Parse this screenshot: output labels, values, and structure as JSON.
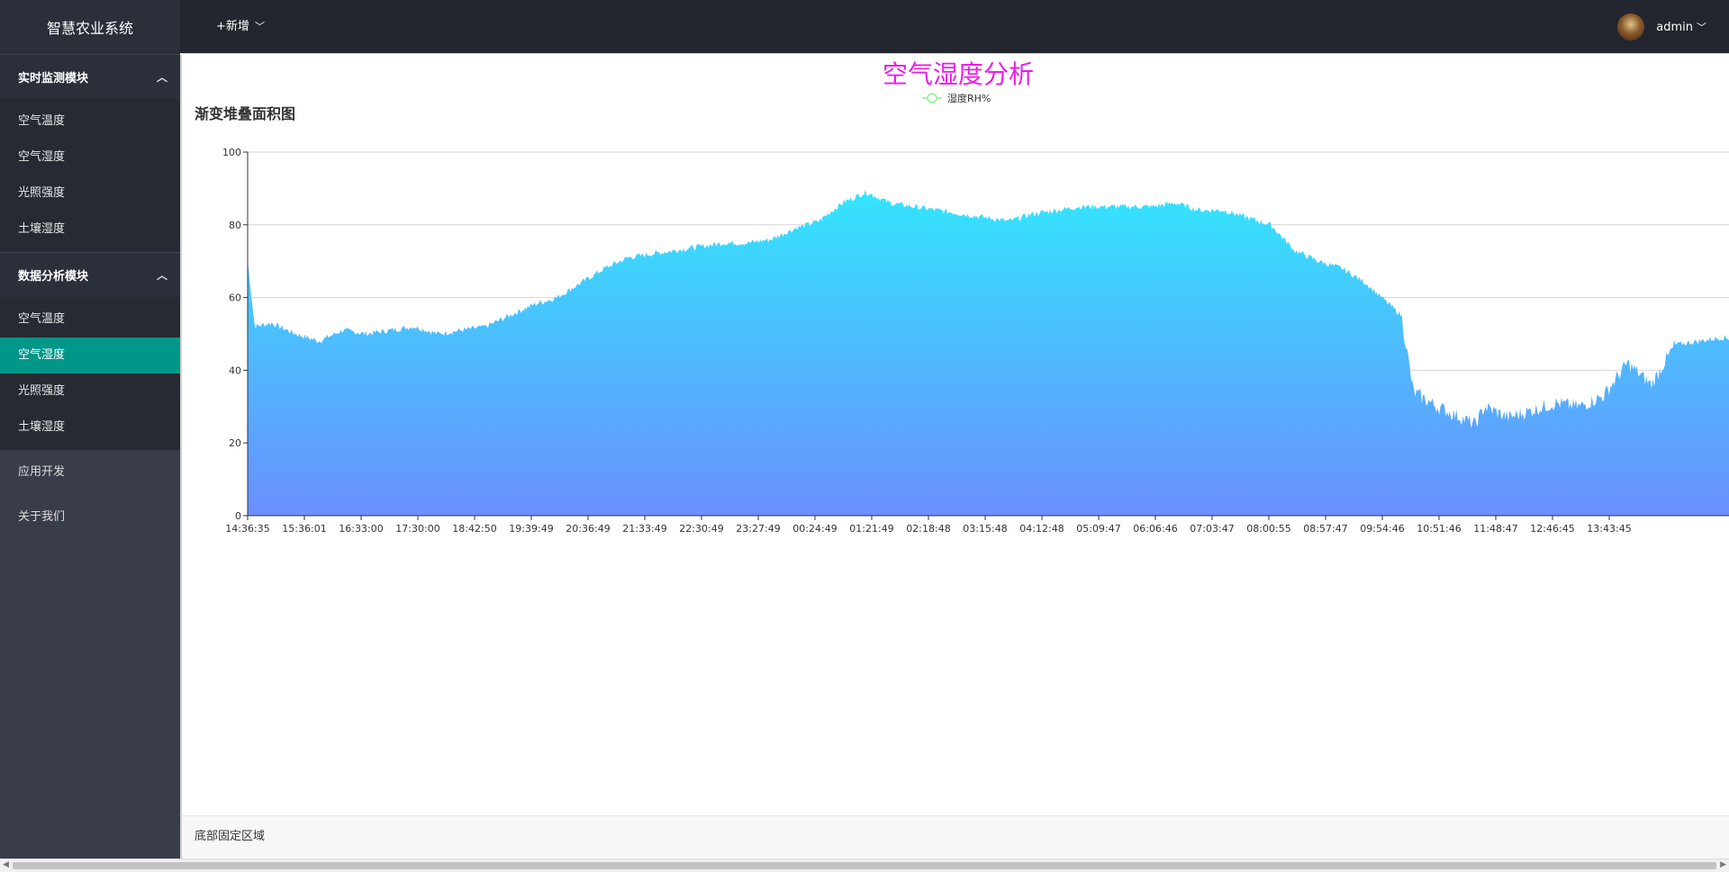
{
  "app": {
    "title": "智慧农业系统"
  },
  "header": {
    "add_label": "+新增",
    "add_chevron": "﹀",
    "username": "admin",
    "user_chevron": "﹀"
  },
  "sidebar": {
    "modules": [
      {
        "title": "实时监测模块",
        "chevron": "︿",
        "items": [
          {
            "label": "空气温度"
          },
          {
            "label": "空气湿度"
          },
          {
            "label": "光照强度"
          },
          {
            "label": "土壤湿度"
          }
        ]
      },
      {
        "title": "数据分析模块",
        "chevron": "︿",
        "items": [
          {
            "label": "空气温度"
          },
          {
            "label": "空气湿度"
          },
          {
            "label": "光照强度"
          },
          {
            "label": "土壤湿度"
          }
        ]
      }
    ],
    "links": [
      {
        "label": "应用开发"
      },
      {
        "label": "关于我们"
      }
    ]
  },
  "main": {
    "section_title": "渐变堆叠面积图"
  },
  "footer": {
    "text": "底部固定区域"
  },
  "colors": {
    "title": "#e91ee6",
    "area_top": "#33e5fd",
    "area_bottom": "#6a8ffe",
    "active": "#009688",
    "legend": "#90ee90"
  },
  "chart_data": {
    "type": "area",
    "title": "空气湿度分析",
    "series": [
      {
        "name": "湿度RH%"
      }
    ],
    "ylim": [
      0,
      100
    ],
    "yticks": [
      0,
      20,
      40,
      60,
      80,
      100
    ],
    "xticks": [
      "14:36:35",
      "15:36:01",
      "16:33:00",
      "17:30:00",
      "18:42:50",
      "19:39:49",
      "20:36:49",
      "21:33:49",
      "22:30:49",
      "23:27:49",
      "00:24:49",
      "01:21:49",
      "02:18:48",
      "03:15:48",
      "04:12:48",
      "05:09:47",
      "06:06:46",
      "07:03:47",
      "08:00:55",
      "08:57:47",
      "09:54:46",
      "10:51:46",
      "11:48:47",
      "12:46:45",
      "13:43:45"
    ],
    "profile": [
      [
        0,
        70
      ],
      [
        0.3,
        52
      ],
      [
        1,
        53
      ],
      [
        2,
        50
      ],
      [
        3,
        48
      ],
      [
        4,
        51
      ],
      [
        5,
        50
      ],
      [
        6,
        51
      ],
      [
        7,
        52
      ],
      [
        8,
        50
      ],
      [
        9,
        51
      ],
      [
        10,
        52
      ],
      [
        11,
        55
      ],
      [
        12,
        58
      ],
      [
        13,
        60
      ],
      [
        14,
        64
      ],
      [
        15,
        68
      ],
      [
        16,
        71
      ],
      [
        17,
        72
      ],
      [
        18,
        73
      ],
      [
        19,
        74
      ],
      [
        20,
        75
      ],
      [
        21,
        75
      ],
      [
        22,
        76
      ],
      [
        23,
        79
      ],
      [
        24,
        81
      ],
      [
        25,
        86
      ],
      [
        26,
        89
      ],
      [
        27,
        86
      ],
      [
        28,
        85
      ],
      [
        29,
        84
      ],
      [
        30,
        83
      ],
      [
        31,
        82
      ],
      [
        32,
        81
      ],
      [
        33,
        83
      ],
      [
        34,
        84
      ],
      [
        35,
        85
      ],
      [
        36,
        85
      ],
      [
        37,
        85
      ],
      [
        38,
        85
      ],
      [
        39,
        86
      ],
      [
        40,
        84
      ],
      [
        41,
        84
      ],
      [
        42,
        82
      ],
      [
        43,
        80
      ],
      [
        44,
        73
      ],
      [
        45,
        70
      ],
      [
        46,
        68
      ],
      [
        47,
        64
      ],
      [
        48.5,
        55
      ],
      [
        49,
        34
      ],
      [
        50,
        30
      ],
      [
        51,
        27
      ],
      [
        51.6,
        25
      ],
      [
        52,
        30
      ],
      [
        53,
        27
      ],
      [
        54,
        29
      ],
      [
        55,
        31
      ],
      [
        56,
        30
      ],
      [
        57,
        33
      ],
      [
        58,
        42
      ],
      [
        59,
        36
      ],
      [
        60,
        47
      ],
      [
        61,
        48
      ],
      [
        62,
        49
      ],
      [
        63,
        48
      ],
      [
        64,
        49
      ],
      [
        64.5,
        34
      ],
      [
        65,
        45
      ],
      [
        66,
        49
      ],
      [
        67,
        49
      ]
    ],
    "grid": true,
    "legend_position": "top-center"
  }
}
